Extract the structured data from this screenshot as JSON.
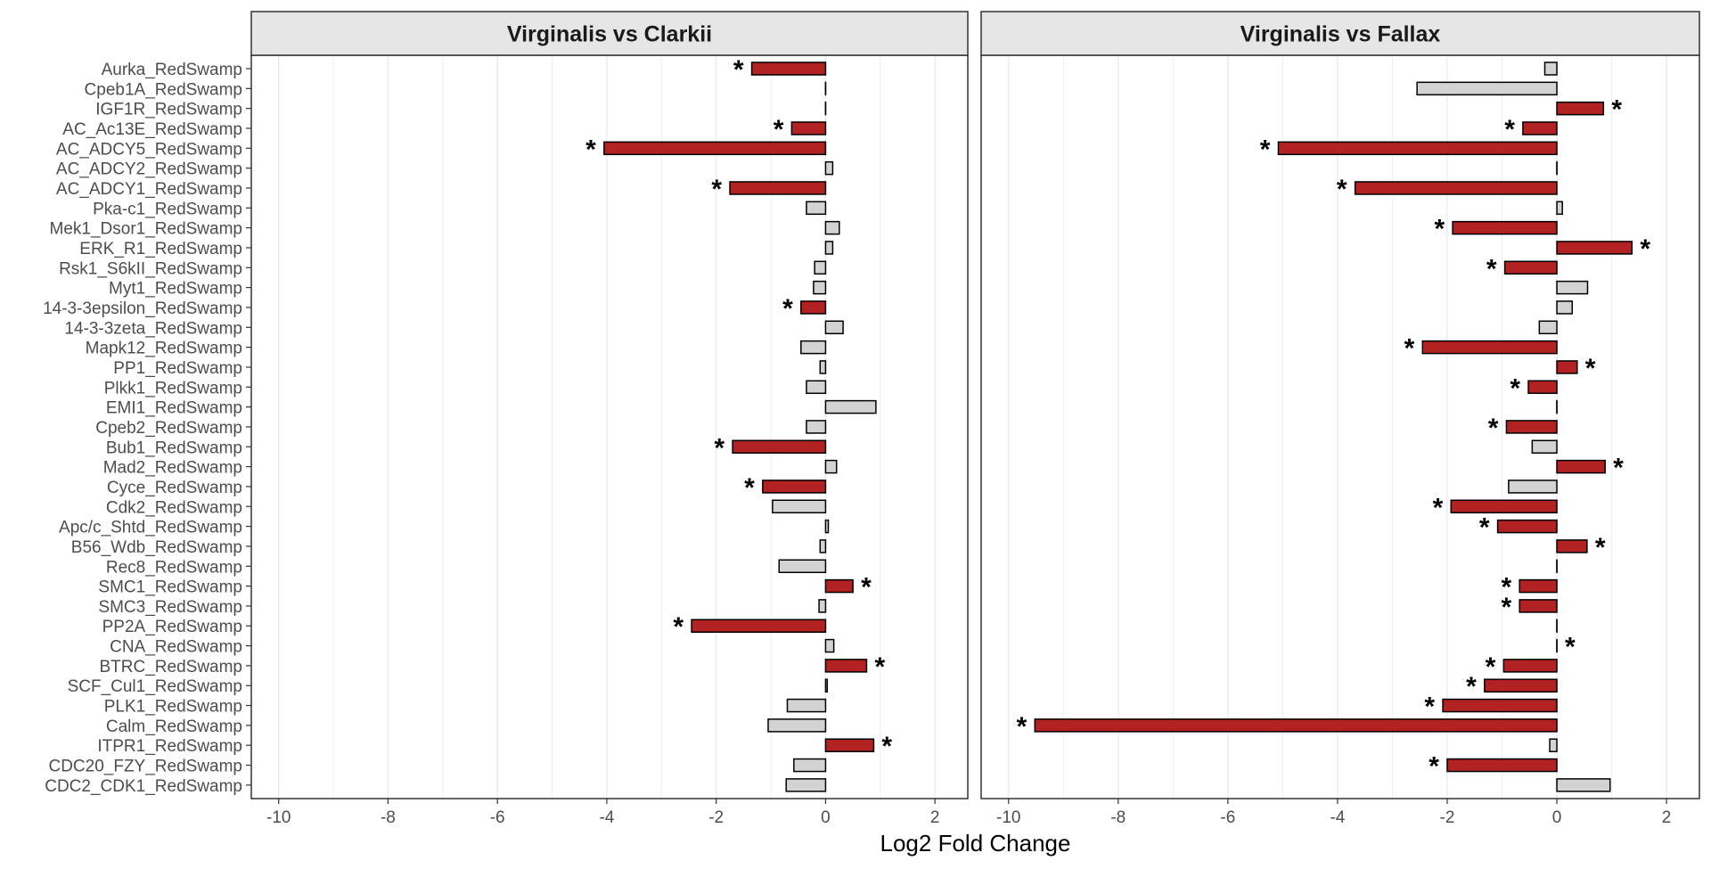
{
  "chart_data": {
    "type": "bar",
    "orientation": "horizontal",
    "xlabel": "Log2 Fold Change",
    "xlim": [
      -10.5,
      2.6
    ],
    "xticks": [
      -10,
      -8,
      -6,
      -4,
      -2,
      0,
      2
    ],
    "grid": true,
    "significance_marker": "*",
    "colors": {
      "significant": "#B22222",
      "not_significant": "#D3D3D3",
      "bar_border": "#000000",
      "strip_background": "#E6E6E6",
      "grid": "#EBEBEB"
    },
    "categories": [
      "Aurka_RedSwamp",
      "Cpeb1A_RedSwamp",
      "IGF1R_RedSwamp",
      "AC_Ac13E_RedSwamp",
      "AC_ADCY5_RedSwamp",
      "AC_ADCY2_RedSwamp",
      "AC_ADCY1_RedSwamp",
      "Pka-c1_RedSwamp",
      "Mek1_Dsor1_RedSwamp",
      "ERK_R1_RedSwamp",
      "Rsk1_S6kII_RedSwamp",
      "Myt1_RedSwamp",
      "14-3-3epsilon_RedSwamp",
      "14-3-3zeta_RedSwamp",
      "Mapk12_RedSwamp",
      "PP1_RedSwamp",
      "Plkk1_RedSwamp",
      "EMI1_RedSwamp",
      "Cpeb2_RedSwamp",
      "Bub1_RedSwamp",
      "Mad2_RedSwamp",
      "Cyce_RedSwamp",
      "Cdk2_RedSwamp",
      "Apc/c_Shtd_RedSwamp",
      "B56_Wdb_RedSwamp",
      "Rec8_RedSwamp",
      "SMC1_RedSwamp",
      "SMC3_RedSwamp",
      "PP2A_RedSwamp",
      "CNA_RedSwamp",
      "BTRC_RedSwamp",
      "SCF_Cul1_RedSwamp",
      "PLK1_RedSwamp",
      "Calm_RedSwamp",
      "ITPR1_RedSwamp",
      "CDC20_FZY_RedSwamp",
      "CDC2_CDK1_RedSwamp"
    ],
    "panels": [
      {
        "title": "Virginalis vs Clarkii",
        "values": [
          -1.35,
          0,
          0,
          -0.62,
          -4.05,
          0.13,
          -1.75,
          -0.35,
          0.25,
          0.13,
          -0.2,
          -0.22,
          -0.45,
          0.32,
          -0.45,
          -0.1,
          -0.35,
          0.92,
          -0.35,
          -1.7,
          0.2,
          -1.15,
          -0.97,
          0.05,
          -0.1,
          -0.85,
          0.5,
          -0.12,
          -2.45,
          0.15,
          0.75,
          0.03,
          -0.7,
          -1.05,
          0.88,
          -0.58,
          -0.72
        ],
        "significant": [
          true,
          false,
          false,
          true,
          true,
          false,
          true,
          false,
          false,
          false,
          false,
          false,
          true,
          false,
          false,
          false,
          false,
          false,
          false,
          true,
          false,
          true,
          false,
          false,
          false,
          false,
          true,
          false,
          true,
          false,
          true,
          false,
          false,
          false,
          true,
          false,
          false
        ]
      },
      {
        "title": "Virginalis vs Fallax",
        "values": [
          -0.22,
          -2.55,
          0.85,
          -0.62,
          -5.08,
          0,
          -3.68,
          0.1,
          -1.9,
          1.37,
          -0.95,
          0.56,
          0.28,
          -0.32,
          -2.45,
          0.37,
          -0.52,
          0,
          -0.92,
          -0.45,
          0.88,
          -0.88,
          -1.93,
          -1.08,
          0.55,
          0,
          -0.68,
          -0.68,
          0,
          0,
          -0.97,
          -1.32,
          -2.08,
          -9.52,
          -0.13,
          -2.0,
          0.97
        ],
        "significant": [
          false,
          false,
          true,
          true,
          true,
          false,
          true,
          false,
          true,
          true,
          true,
          false,
          false,
          false,
          true,
          true,
          true,
          false,
          true,
          false,
          true,
          false,
          true,
          true,
          true,
          false,
          true,
          true,
          false,
          true,
          true,
          true,
          true,
          true,
          false,
          true,
          false
        ]
      }
    ]
  }
}
